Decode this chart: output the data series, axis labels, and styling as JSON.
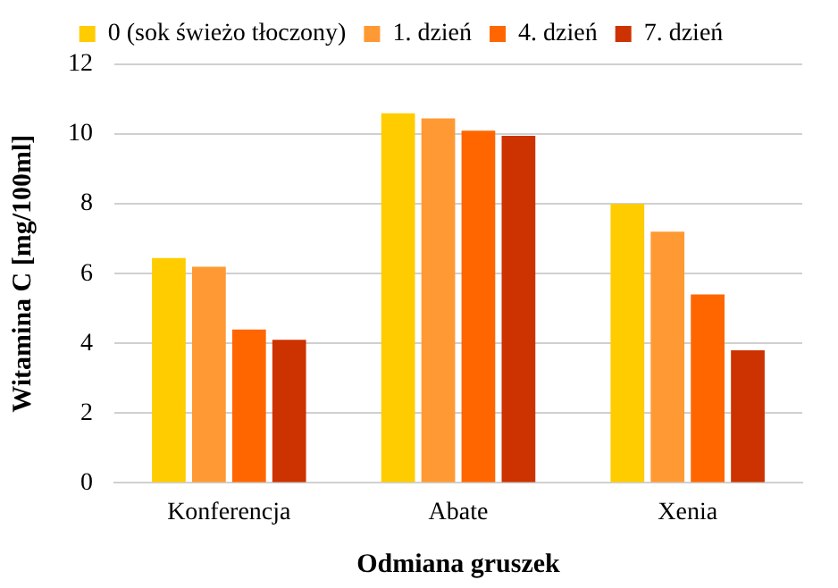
{
  "chart_data": {
    "type": "bar",
    "xlabel": "Odmiana gruszek",
    "ylabel": "Witamina C [mg/100ml]",
    "categories": [
      "Konferencja",
      "Abate",
      "Xenia"
    ],
    "series": [
      {
        "name": "0 (sok świeżo tłoczony)",
        "color": "#ffcc00",
        "values": [
          6.45,
          10.6,
          8.0
        ]
      },
      {
        "name": "1. dzień",
        "color": "#ff9933",
        "values": [
          6.2,
          10.45,
          7.2
        ]
      },
      {
        "name": "4. dzień",
        "color": "#ff6600",
        "values": [
          4.4,
          10.1,
          5.4
        ]
      },
      {
        "name": "7. dzień",
        "color": "#cc3300",
        "values": [
          4.1,
          9.95,
          3.8
        ]
      }
    ],
    "ylim": [
      0,
      12
    ],
    "yticks": [
      0,
      2,
      4,
      6,
      8,
      10,
      12
    ],
    "grid": "y",
    "legend": "top"
  }
}
